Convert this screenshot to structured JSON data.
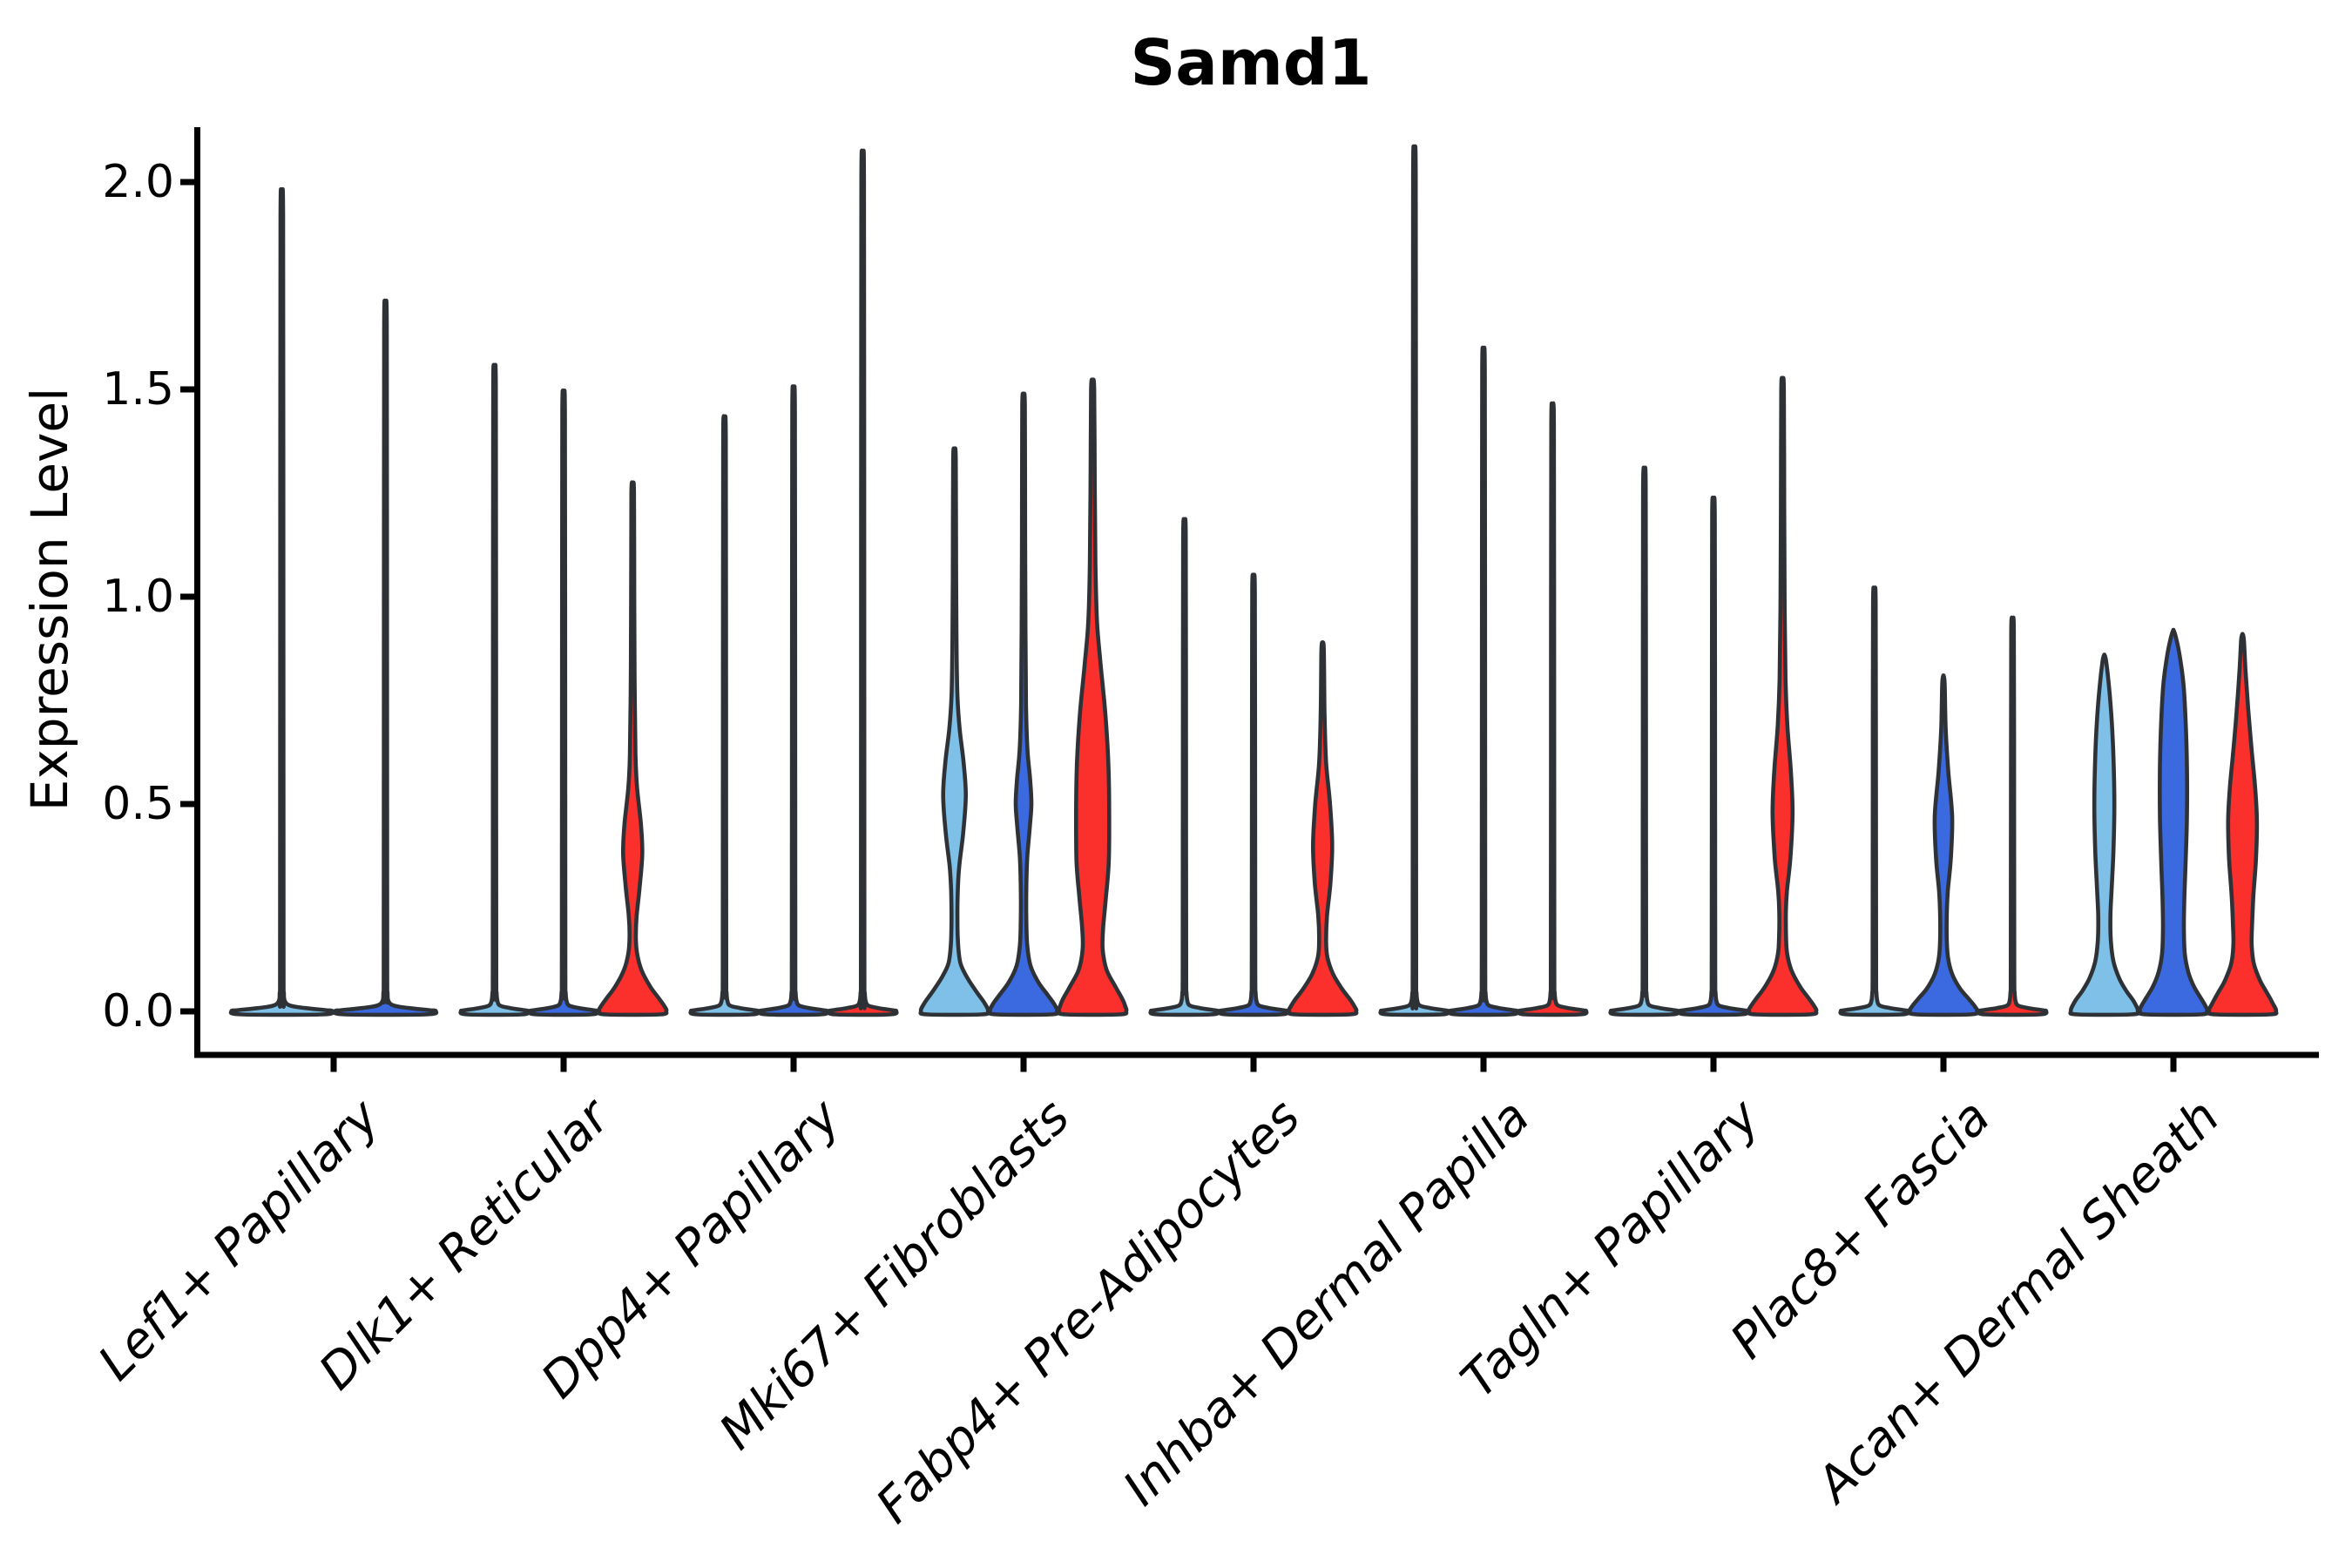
{
  "chart_data": {
    "type": "violin",
    "title": "Samd1",
    "ylabel": "Expression Level",
    "yticks": [
      "0.0",
      "0.5",
      "1.0",
      "1.5",
      "2.0"
    ],
    "ytick_values": [
      0.0,
      0.5,
      1.0,
      1.5,
      2.0
    ],
    "ylim": [
      -0.105,
      2.13
    ],
    "grid": false,
    "legend_position": "none",
    "axis_color": "#000000",
    "violin_outline_color": "#2E3236",
    "conditions": [
      {
        "key": "light-blue",
        "color": "#7EC0E8"
      },
      {
        "key": "blue",
        "color": "#3B6AE0"
      },
      {
        "key": "red",
        "color": "#FB302D"
      }
    ],
    "groups": [
      {
        "category": "Lef1+ Papillary",
        "violins": [
          {
            "cond": 0,
            "max": 1.93,
            "kind": "spike"
          },
          {
            "cond": 1,
            "max": 1.67,
            "kind": "spike"
          }
        ]
      },
      {
        "category": "Dlk1+ Reticular",
        "violins": [
          {
            "cond": 0,
            "max": 1.52,
            "kind": "spike"
          },
          {
            "cond": 1,
            "max": 1.46,
            "kind": "spike"
          },
          {
            "cond": 2,
            "max": 1.27,
            "kind": "shape",
            "profile": [
              [
                1.27,
                0.1
              ],
              [
                1.25,
                1.5
              ],
              [
                1.0,
                1.8
              ],
              [
                0.8,
                2.2
              ],
              [
                0.62,
                3.2
              ],
              [
                0.54,
                5
              ],
              [
                0.45,
                9.5
              ],
              [
                0.38,
                11
              ],
              [
                0.3,
                8
              ],
              [
                0.23,
                4.5
              ],
              [
                0.18,
                3.6
              ],
              [
                0.14,
                5
              ],
              [
                0.1,
                10
              ],
              [
                0.06,
                20
              ],
              [
                0.03,
                30.5
              ],
              [
                0.012,
                36.5
              ],
              [
                0.0005,
                38.5
              ]
            ]
          }
        ]
      },
      {
        "category": "Dpp4+ Papillary",
        "violins": [
          {
            "cond": 0,
            "max": 1.4,
            "kind": "spike"
          },
          {
            "cond": 1,
            "max": 1.47,
            "kind": "spike"
          },
          {
            "cond": 2,
            "max": 2.02,
            "kind": "spike"
          }
        ]
      },
      {
        "category": "Mki67+ Fibroblasts",
        "violins": [
          {
            "cond": 0,
            "max": 1.35,
            "kind": "shape",
            "profile": [
              [
                1.35,
                0.1
              ],
              [
                1.33,
                1.5
              ],
              [
                1.05,
                1.9
              ],
              [
                0.88,
                2.4
              ],
              [
                0.76,
                3.4
              ],
              [
                0.68,
                6
              ],
              [
                0.6,
                10.5
              ],
              [
                0.52,
                13
              ],
              [
                0.43,
                10
              ],
              [
                0.35,
                5.5
              ],
              [
                0.29,
                3.8
              ],
              [
                0.22,
                3.4
              ],
              [
                0.16,
                4.2
              ],
              [
                0.115,
                7
              ],
              [
                0.08,
                15
              ],
              [
                0.045,
                26
              ],
              [
                0.02,
                34.5
              ],
              [
                0.0005,
                38.5
              ]
            ]
          },
          {
            "cond": 1,
            "max": 1.48,
            "kind": "shape",
            "profile": [
              [
                1.48,
                0.1
              ],
              [
                1.46,
                1.5
              ],
              [
                1.15,
                1.8
              ],
              [
                0.92,
                2.2
              ],
              [
                0.74,
                2.8
              ],
              [
                0.63,
                4.5
              ],
              [
                0.56,
                7.5
              ],
              [
                0.5,
                9
              ],
              [
                0.44,
                7
              ],
              [
                0.37,
                4.2
              ],
              [
                0.3,
                3.2
              ],
              [
                0.22,
                3.2
              ],
              [
                0.16,
                4.2
              ],
              [
                0.11,
                8
              ],
              [
                0.07,
                17
              ],
              [
                0.04,
                27.5
              ],
              [
                0.018,
                35
              ],
              [
                0.0005,
                38.5
              ]
            ]
          },
          {
            "cond": 2,
            "max": 1.52,
            "kind": "shape",
            "profile": [
              [
                1.52,
                0.1
              ],
              [
                1.5,
                1.8
              ],
              [
                1.28,
                2.4
              ],
              [
                1.08,
                3.2
              ],
              [
                0.94,
                5
              ],
              [
                0.84,
                9
              ],
              [
                0.72,
                14.5
              ],
              [
                0.6,
                18
              ],
              [
                0.48,
                19
              ],
              [
                0.36,
                18.5
              ],
              [
                0.27,
                15
              ],
              [
                0.2,
                12
              ],
              [
                0.15,
                11.5
              ],
              [
                0.1,
                16
              ],
              [
                0.06,
                26
              ],
              [
                0.03,
                34
              ],
              [
                0.012,
                37.5
              ],
              [
                0.0005,
                38.5
              ]
            ]
          }
        ]
      },
      {
        "category": "Fabp4+ Pre-Adipocytes",
        "violins": [
          {
            "cond": 0,
            "max": 1.16,
            "kind": "spike"
          },
          {
            "cond": 1,
            "max": 1.03,
            "kind": "spike"
          },
          {
            "cond": 2,
            "max": 0.89,
            "kind": "shape",
            "profile": [
              [
                0.89,
                0.1
              ],
              [
                0.87,
                1.4
              ],
              [
                0.72,
                2.2
              ],
              [
                0.6,
                4
              ],
              [
                0.5,
                8.5
              ],
              [
                0.4,
                11
              ],
              [
                0.31,
                9
              ],
              [
                0.23,
                5
              ],
              [
                0.17,
                4
              ],
              [
                0.13,
                5.5
              ],
              [
                0.09,
                12
              ],
              [
                0.055,
                22
              ],
              [
                0.03,
                31
              ],
              [
                0.012,
                36.5
              ],
              [
                0.0005,
                38.5
              ]
            ]
          }
        ]
      },
      {
        "category": "Inhba+ Dermal Papilla",
        "violins": [
          {
            "cond": 0,
            "max": 2.03,
            "kind": "spike"
          },
          {
            "cond": 1,
            "max": 1.56,
            "kind": "spike"
          },
          {
            "cond": 2,
            "max": 1.43,
            "kind": "spike"
          }
        ]
      },
      {
        "category": "Tagln+ Papillary",
        "violins": [
          {
            "cond": 0,
            "max": 1.28,
            "kind": "spike"
          },
          {
            "cond": 1,
            "max": 1.21,
            "kind": "spike"
          },
          {
            "cond": 2,
            "max": 1.52,
            "kind": "shape",
            "profile": [
              [
                1.52,
                0.1
              ],
              [
                1.5,
                1.5
              ],
              [
                1.22,
                1.9
              ],
              [
                0.97,
                2.4
              ],
              [
                0.8,
                3.4
              ],
              [
                0.69,
                5.5
              ],
              [
                0.58,
                9.5
              ],
              [
                0.48,
                11.5
              ],
              [
                0.37,
                9
              ],
              [
                0.29,
                5
              ],
              [
                0.24,
                3.8
              ],
              [
                0.18,
                4
              ],
              [
                0.14,
                5.2
              ],
              [
                0.1,
                10
              ],
              [
                0.06,
                20
              ],
              [
                0.03,
                30.5
              ],
              [
                0.012,
                36.5
              ],
              [
                0.0005,
                38.5
              ]
            ]
          }
        ]
      },
      {
        "category": "Plac8+ Fascia",
        "violins": [
          {
            "cond": 0,
            "max": 1.0,
            "kind": "spike"
          },
          {
            "cond": 1,
            "max": 0.81,
            "kind": "shape",
            "profile": [
              [
                0.81,
                0.1
              ],
              [
                0.79,
                1.4
              ],
              [
                0.68,
                2.6
              ],
              [
                0.58,
                5.5
              ],
              [
                0.47,
                10
              ],
              [
                0.37,
                8.5
              ],
              [
                0.29,
                5
              ],
              [
                0.23,
                3.8
              ],
              [
                0.175,
                3.8
              ],
              [
                0.13,
                5.2
              ],
              [
                0.09,
                10
              ],
              [
                0.055,
                19
              ],
              [
                0.03,
                29
              ],
              [
                0.012,
                36
              ],
              [
                0.0005,
                38.5
              ]
            ]
          },
          {
            "cond": 2,
            "max": 0.93,
            "kind": "spike"
          }
        ]
      },
      {
        "category": "Acan+ Dermal Sheath",
        "violins": [
          {
            "cond": 0,
            "max": 0.86,
            "kind": "shape",
            "profile": [
              [
                0.86,
                0.1
              ],
              [
                0.845,
                2
              ],
              [
                0.78,
                5.5
              ],
              [
                0.7,
                8.5
              ],
              [
                0.61,
                10.5
              ],
              [
                0.5,
                11.5
              ],
              [
                0.39,
                10.5
              ],
              [
                0.3,
                8.5
              ],
              [
                0.23,
                7
              ],
              [
                0.17,
                7.5
              ],
              [
                0.12,
                10.5
              ],
              [
                0.08,
                17
              ],
              [
                0.05,
                25
              ],
              [
                0.025,
                33.5
              ],
              [
                0.0005,
                38.5
              ]
            ]
          },
          {
            "cond": 1,
            "max": 0.92,
            "kind": "shape",
            "profile": [
              [
                0.92,
                0.1
              ],
              [
                0.905,
                2.5
              ],
              [
                0.86,
                7
              ],
              [
                0.79,
                11.5
              ],
              [
                0.7,
                14
              ],
              [
                0.59,
                15.5
              ],
              [
                0.47,
                15.5
              ],
              [
                0.36,
                14
              ],
              [
                0.27,
                12.5
              ],
              [
                0.2,
                12
              ],
              [
                0.14,
                13
              ],
              [
                0.095,
                17
              ],
              [
                0.06,
                23.5
              ],
              [
                0.03,
                32
              ],
              [
                0.012,
                37
              ],
              [
                0.0005,
                38.5
              ]
            ]
          },
          {
            "cond": 2,
            "max": 0.91,
            "kind": "shape",
            "profile": [
              [
                0.91,
                0.1
              ],
              [
                0.895,
                1.6
              ],
              [
                0.82,
                3.5
              ],
              [
                0.73,
                6.5
              ],
              [
                0.63,
                10.5
              ],
              [
                0.54,
                14.5
              ],
              [
                0.46,
                16.5
              ],
              [
                0.37,
                15.5
              ],
              [
                0.28,
                12.5
              ],
              [
                0.21,
                11
              ],
              [
                0.16,
                10.5
              ],
              [
                0.115,
                13
              ],
              [
                0.075,
                20
              ],
              [
                0.045,
                28
              ],
              [
                0.02,
                34.5
              ],
              [
                0.0005,
                38.5
              ]
            ]
          }
        ]
      }
    ]
  }
}
